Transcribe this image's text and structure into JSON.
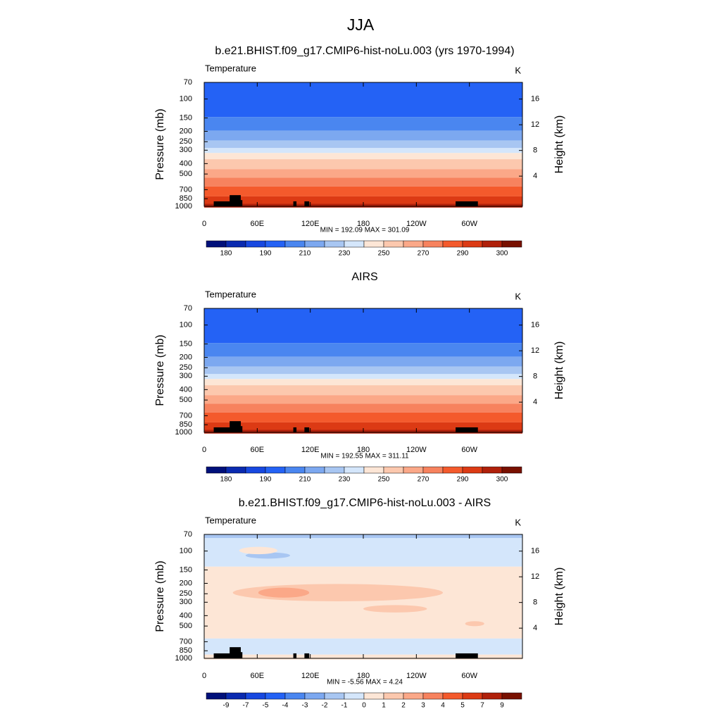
{
  "title": "JJA",
  "chart_data": [
    {
      "type": "contour",
      "title": "b.e21.BHIST.f09_g17.CMIP6-hist-noLu.003 (yrs 1970-1994)",
      "left_title": "Temperature",
      "units": "K",
      "ylabel": "Pressure (mb)",
      "y2label": "Height (km)",
      "log_scale": true,
      "ylim": [
        1000,
        70
      ],
      "yticks": [
        70,
        100,
        150,
        200,
        250,
        300,
        400,
        500,
        700,
        850,
        1000
      ],
      "y2lim": [
        -0.7,
        18.6
      ],
      "y2ticks": [
        4,
        8,
        12,
        16
      ],
      "xlim": [
        0,
        360
      ],
      "xticks": [
        0,
        {
          "value": 60,
          "label": "60E"
        },
        {
          "value": 120,
          "label": "120E"
        },
        180,
        {
          "value": 240,
          "label": "120W"
        },
        {
          "value": 300,
          "label": "60W"
        }
      ],
      "stats": "MIN = 192.09  MAX = 301.09",
      "colorbar": {
        "colors": [
          "#00107a",
          "#0a2ab0",
          "#1748e0",
          "#2462f5",
          "#4a86f0",
          "#7ca8f0",
          "#a8c6f2",
          "#d4e6fb",
          "#fde6d6",
          "#fcc8ae",
          "#fba888",
          "#f7825e",
          "#f45a2c",
          "#dc3a14",
          "#b0200a",
          "#781000"
        ],
        "labels": [
          180,
          190,
          210,
          230,
          250,
          270,
          290,
          300
        ]
      }
    },
    {
      "type": "contour",
      "title": "AIRS",
      "left_title": "Temperature",
      "units": "K",
      "ylabel": "Pressure (mb)",
      "y2label": "Height (km)",
      "log_scale": true,
      "ylim": [
        1000,
        70
      ],
      "yticks": [
        70,
        100,
        150,
        200,
        250,
        300,
        400,
        500,
        700,
        850,
        1000
      ],
      "y2lim": [
        -0.7,
        18.6
      ],
      "y2ticks": [
        4,
        8,
        12,
        16
      ],
      "xlim": [
        0,
        360
      ],
      "xticks": [
        0,
        {
          "value": 60,
          "label": "60E"
        },
        {
          "value": 120,
          "label": "120E"
        },
        180,
        {
          "value": 240,
          "label": "120W"
        },
        {
          "value": 300,
          "label": "60W"
        }
      ],
      "stats": "MIN = 192.55  MAX = 311.11",
      "colorbar": {
        "colors": [
          "#00107a",
          "#0a2ab0",
          "#1748e0",
          "#2462f5",
          "#4a86f0",
          "#7ca8f0",
          "#a8c6f2",
          "#d4e6fb",
          "#fde6d6",
          "#fcc8ae",
          "#fba888",
          "#f7825e",
          "#f45a2c",
          "#dc3a14",
          "#b0200a",
          "#781000"
        ],
        "labels": [
          180,
          190,
          210,
          230,
          250,
          270,
          290,
          300
        ]
      }
    },
    {
      "type": "difference",
      "title": "b.e21.BHIST.f09_g17.CMIP6-hist-noLu.003 - AIRS",
      "left_title": "Temperature",
      "units": "K",
      "ylabel": "Pressure (mb)",
      "y2label": "Height (km)",
      "log_scale": true,
      "ylim": [
        1000,
        70
      ],
      "yticks": [
        70,
        100,
        150,
        200,
        250,
        300,
        400,
        500,
        700,
        850,
        1000
      ],
      "y2lim": [
        -0.7,
        18.6
      ],
      "y2ticks": [
        4,
        8,
        12,
        16
      ],
      "xlim": [
        0,
        360
      ],
      "xticks": [
        0,
        {
          "value": 60,
          "label": "60E"
        },
        {
          "value": 120,
          "label": "120E"
        },
        180,
        {
          "value": 240,
          "label": "120W"
        },
        {
          "value": 300,
          "label": "60W"
        }
      ],
      "stats": "MIN =  -5.56  MAX =   4.24",
      "colorbar": {
        "colors": [
          "#00107a",
          "#0a2ab0",
          "#1748e0",
          "#2462f5",
          "#4a86f0",
          "#7ca8f0",
          "#a8c6f2",
          "#d4e6fb",
          "#fde6d6",
          "#fcc8ae",
          "#fba888",
          "#f7825e",
          "#f45a2c",
          "#dc3a14",
          "#b0200a",
          "#781000"
        ],
        "labels": [
          -9,
          -7,
          -5,
          -4,
          -3,
          -2,
          -1,
          0,
          1,
          2,
          3,
          4,
          5,
          7,
          9
        ]
      }
    }
  ]
}
